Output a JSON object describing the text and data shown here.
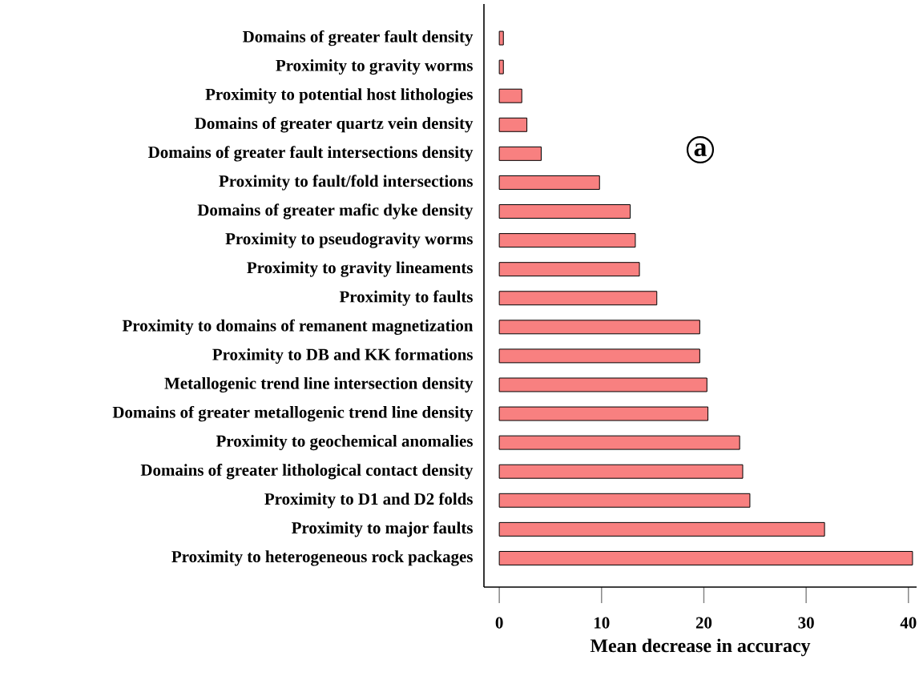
{
  "chart_data": {
    "type": "bar",
    "orientation": "horizontal",
    "xlabel": "Mean decrease in accuracy",
    "categories": [
      "Domains of greater fault density",
      "Proximity to gravity worms",
      "Proximity to potential host lithologies",
      "Domains of greater quartz vein density",
      "Domains of greater fault intersections density",
      "Proximity to fault/fold intersections",
      "Domains of greater mafic dyke density",
      "Proximity to pseudogravity worms",
      "Proximity to gravity lineaments",
      "Proximity to faults",
      "Proximity to domains of remanent magnetization",
      "Proximity to DB and KK formations",
      "Metallogenic trend line intersection density",
      "Domains of greater metallogenic trend line density",
      "Proximity to geochemical anomalies",
      "Domains of greater lithological contact density",
      "Proximity to D1 and D2 folds",
      "Proximity to major faults",
      "Proximity to heterogeneous rock packages"
    ],
    "values": [
      0.4,
      0.4,
      2.2,
      2.7,
      4.1,
      9.8,
      12.8,
      13.3,
      13.7,
      15.4,
      19.6,
      19.6,
      20.3,
      20.4,
      23.5,
      23.8,
      24.5,
      31.8,
      40.4
    ],
    "color": "#f88080",
    "xlim": [
      -1.5,
      40.8
    ],
    "xticks": [
      0,
      10,
      20,
      30,
      40
    ],
    "annotations": [
      "a"
    ]
  }
}
